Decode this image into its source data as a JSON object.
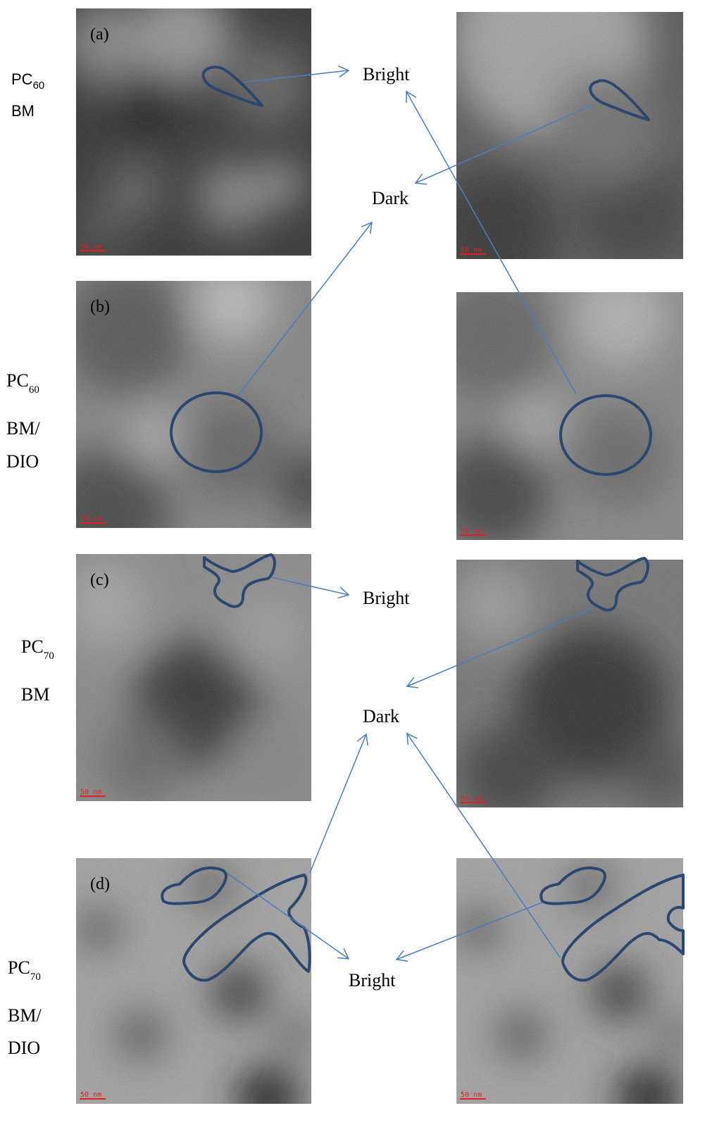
{
  "rows": [
    {
      "label": {
        "main": "PC",
        "sub": "60",
        "lines": [
          "BM"
        ]
      },
      "panel_label": "(a)",
      "scale_bars": [
        "50 nm",
        "50 nm"
      ]
    },
    {
      "label": {
        "main": "PC",
        "sub": "60",
        "lines": [
          "BM/",
          "DIO"
        ]
      },
      "panel_label": "(b)",
      "scale_bars": [
        "50 nm",
        "50 nm"
      ]
    },
    {
      "label": {
        "main": "PC",
        "sub": "70",
        "lines": [
          "BM"
        ]
      },
      "panel_label": "(c)",
      "scale_bars": [
        "50 nm",
        "50 nm"
      ]
    },
    {
      "label": {
        "main": "PC",
        "sub": "70",
        "lines": [
          "BM/",
          "DIO"
        ]
      },
      "panel_label": "(d)",
      "scale_bars": [
        "50 nm",
        "50 nm"
      ]
    }
  ],
  "annotations": [
    "Bright",
    "Dark",
    "Bright",
    "Dark",
    "Bright"
  ]
}
